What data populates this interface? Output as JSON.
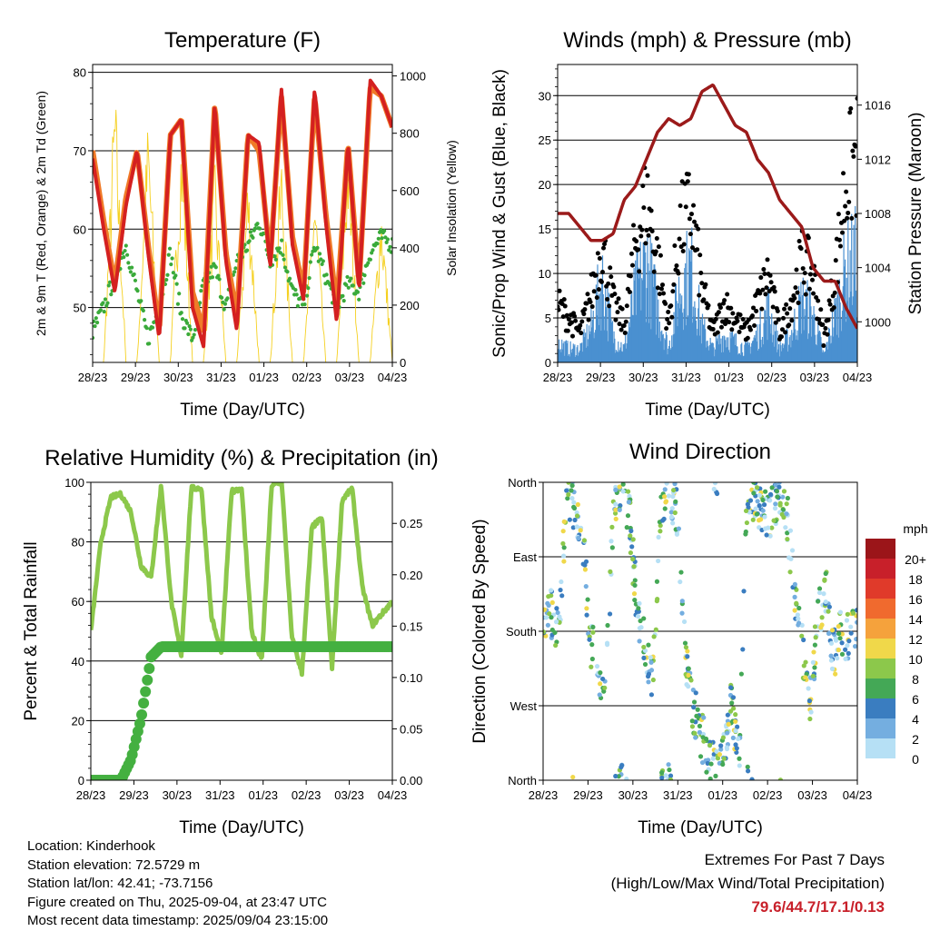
{
  "chart_data": [
    {
      "type": "line",
      "title": "Temperature (F)",
      "xlabel": "Time (Day/UTC)",
      "ylabel": "2m & 9m T (Red, Orange) & 2m Td (Green)",
      "ylabel_right": "Solar Insolation (Yellow)",
      "x_ticks": [
        "28/23",
        "29/23",
        "30/23",
        "31/23",
        "01/23",
        "02/23",
        "03/23",
        "04/23"
      ],
      "ylim": [
        43,
        81
      ],
      "y_ticks": [
        50,
        60,
        70,
        80
      ],
      "y2lim": [
        0,
        1040
      ],
      "y2_ticks": [
        0,
        200,
        400,
        600,
        800,
        1000
      ],
      "grid": "horizontal",
      "series": [
        {
          "color": "#d42020",
          "values": [
            69,
            60,
            52,
            63,
            70,
            57,
            46,
            72,
            74,
            50,
            45,
            76,
            56,
            47,
            72,
            71,
            55,
            78,
            58,
            51,
            78,
            61,
            48,
            71,
            52,
            79,
            77,
            73
          ]
        },
        {
          "color": "#f07a28",
          "values": [
            70,
            61,
            53,
            64,
            70,
            58,
            47,
            72,
            74,
            52,
            47,
            76,
            57,
            49,
            72,
            70,
            56,
            77,
            59,
            52,
            77,
            62,
            50,
            71,
            53,
            78,
            77,
            73
          ]
        },
        {
          "color": "#3aaa3a",
          "values": [
            47,
            50,
            54,
            58,
            52,
            46,
            50,
            57,
            49,
            46,
            53,
            55,
            50,
            56,
            58,
            61,
            56,
            58,
            52,
            50,
            58,
            54,
            50,
            53,
            52,
            57,
            59,
            58
          ]
        },
        {
          "color": "#f5d020",
          "values": [
            0,
            0,
            1020,
            0,
            0,
            900,
            0,
            0,
            880,
            0,
            0,
            720,
            0,
            0,
            700,
            0,
            0,
            770,
            0,
            0,
            660,
            0,
            0,
            840,
            0,
            0,
            600,
            0
          ]
        }
      ]
    },
    {
      "type": "scatter",
      "title": "Winds (mph) & Pressure (mb)",
      "xlabel": "Time (Day/UTC)",
      "ylabel": "Sonic/Prop Wind & Gust (Blue, Black)",
      "ylabel_right": "Station Pressure (Maroon)",
      "x_ticks": [
        "28/23",
        "29/23",
        "30/23",
        "31/23",
        "01/23",
        "02/23",
        "03/23",
        "04/23"
      ],
      "ylim": [
        0,
        33.5
      ],
      "y_ticks": [
        0,
        5,
        10,
        15,
        20,
        25,
        30
      ],
      "y2lim": [
        997,
        1019
      ],
      "y2_ticks": [
        1000,
        1004,
        1008,
        1012,
        1016
      ],
      "grid": "horizontal",
      "series": [
        {
          "color": "#000000",
          "values": [
            8,
            6,
            4,
            9,
            16,
            8,
            5,
            16,
            22,
            14,
            5,
            18,
            21,
            10,
            4,
            8,
            6,
            4,
            8,
            12,
            4,
            8,
            14,
            12,
            3,
            12,
            25,
            28
          ]
        },
        {
          "color": "#4a90d0",
          "values": [
            3,
            2,
            2,
            5,
            12,
            4,
            2,
            10,
            15,
            8,
            2,
            11,
            14,
            5,
            2,
            4,
            3,
            2,
            4,
            8,
            2,
            4,
            9,
            7,
            1,
            7,
            14,
            15
          ]
        },
        {
          "color": "#9b1a1a",
          "values": [
            1008,
            1008,
            1007,
            1006,
            1006,
            1006.5,
            1009,
            1010,
            1012,
            1014,
            1015,
            1014.5,
            1015,
            1017,
            1017.5,
            1016,
            1014.5,
            1014,
            1012,
            1011,
            1009,
            1008,
            1007,
            1004,
            1003,
            1003,
            1001,
            999.5
          ]
        }
      ]
    },
    {
      "type": "line",
      "title": "Relative Humidity (%) & Precipitation (in)",
      "xlabel": "Time (Day/UTC)",
      "ylabel": "Percent & Total Rainfall",
      "x_ticks": [
        "28/23",
        "29/23",
        "30/23",
        "31/23",
        "01/23",
        "02/23",
        "03/23",
        "04/23"
      ],
      "ylim": [
        0,
        100
      ],
      "y_ticks": [
        0,
        20,
        40,
        60,
        80,
        100
      ],
      "y2lim": [
        0,
        0.29
      ],
      "y2_ticks": [
        "0.00",
        "0.05",
        "0.10",
        "0.15",
        "0.20",
        "0.25"
      ],
      "grid": "horizontal",
      "series": [
        {
          "color": "#8cc84b",
          "values": [
            50,
            80,
            95,
            96,
            90,
            72,
            68,
            99,
            60,
            42,
            98,
            98,
            55,
            42,
            97,
            98,
            50,
            40,
            99,
            100,
            48,
            36,
            85,
            88,
            38,
            94,
            98,
            65,
            52,
            56,
            60
          ]
        },
        {
          "color": "#44b040",
          "values": [
            0,
            0,
            0,
            0,
            0.02,
            0.06,
            0.12,
            0.13,
            0.13,
            0.13,
            0.13,
            0.13,
            0.13,
            0.13,
            0.13,
            0.13,
            0.13,
            0.13,
            0.13,
            0.13,
            0.13,
            0.13,
            0.13,
            0.13,
            0.13,
            0.13,
            0.13,
            0.13,
            0.13,
            0.13,
            0.13
          ]
        }
      ]
    },
    {
      "type": "scatter",
      "title": "Wind Direction",
      "xlabel": "Time (Day/UTC)",
      "ylabel": "Direction (Colored By Speed)",
      "x_ticks": [
        "28/23",
        "29/23",
        "30/23",
        "31/23",
        "01/23",
        "02/23",
        "03/23",
        "04/23"
      ],
      "y_ticks": [
        "North",
        "West",
        "South",
        "East",
        "North"
      ],
      "ylim": [
        0,
        360
      ],
      "grid": "horizontal",
      "colorbar": {
        "title": "mph",
        "labels": [
          "20+",
          "18",
          "16",
          "14",
          "12",
          "10",
          "8",
          "6",
          "4",
          "2",
          "0"
        ],
        "colors": [
          "#9b1519",
          "#c8202a",
          "#e03a2a",
          "#f06a2e",
          "#f5a23c",
          "#f0d84a",
          "#8cc84b",
          "#44a856",
          "#3a7dc0",
          "#74aee0",
          "#b6e0f5"
        ]
      },
      "series": [
        {
          "values": [
            190,
            200,
            180,
            350,
            330,
            300,
            170,
            130,
            110,
            340,
            350,
            320,
            200,
            160,
            120,
            340,
            350,
            330,
            160,
            90,
            60,
            30,
            10,
            40,
            90,
            20,
            350,
            340,
            330,
            320,
            350,
            330,
            220,
            160,
            90,
            200,
            230,
            150,
            180,
            170,
            190
          ]
        }
      ]
    }
  ],
  "info": {
    "location": "Location: Kinderhook",
    "elevation": "Station elevation: 72.5729 m",
    "latlon": "Station lat/lon: 42.41; -73.7156",
    "created": "Figure created on Thu, 2025-09-04, at 23:47 UTC",
    "recent": "Most recent data timestamp: 2025/09/04 23:15:00"
  },
  "extremes": {
    "line1": "Extremes For Past 7 Days",
    "line2": "(High/Low/Max Wind/Total Precipitation)",
    "values": "79.6/44.7/17.1/0.13"
  }
}
